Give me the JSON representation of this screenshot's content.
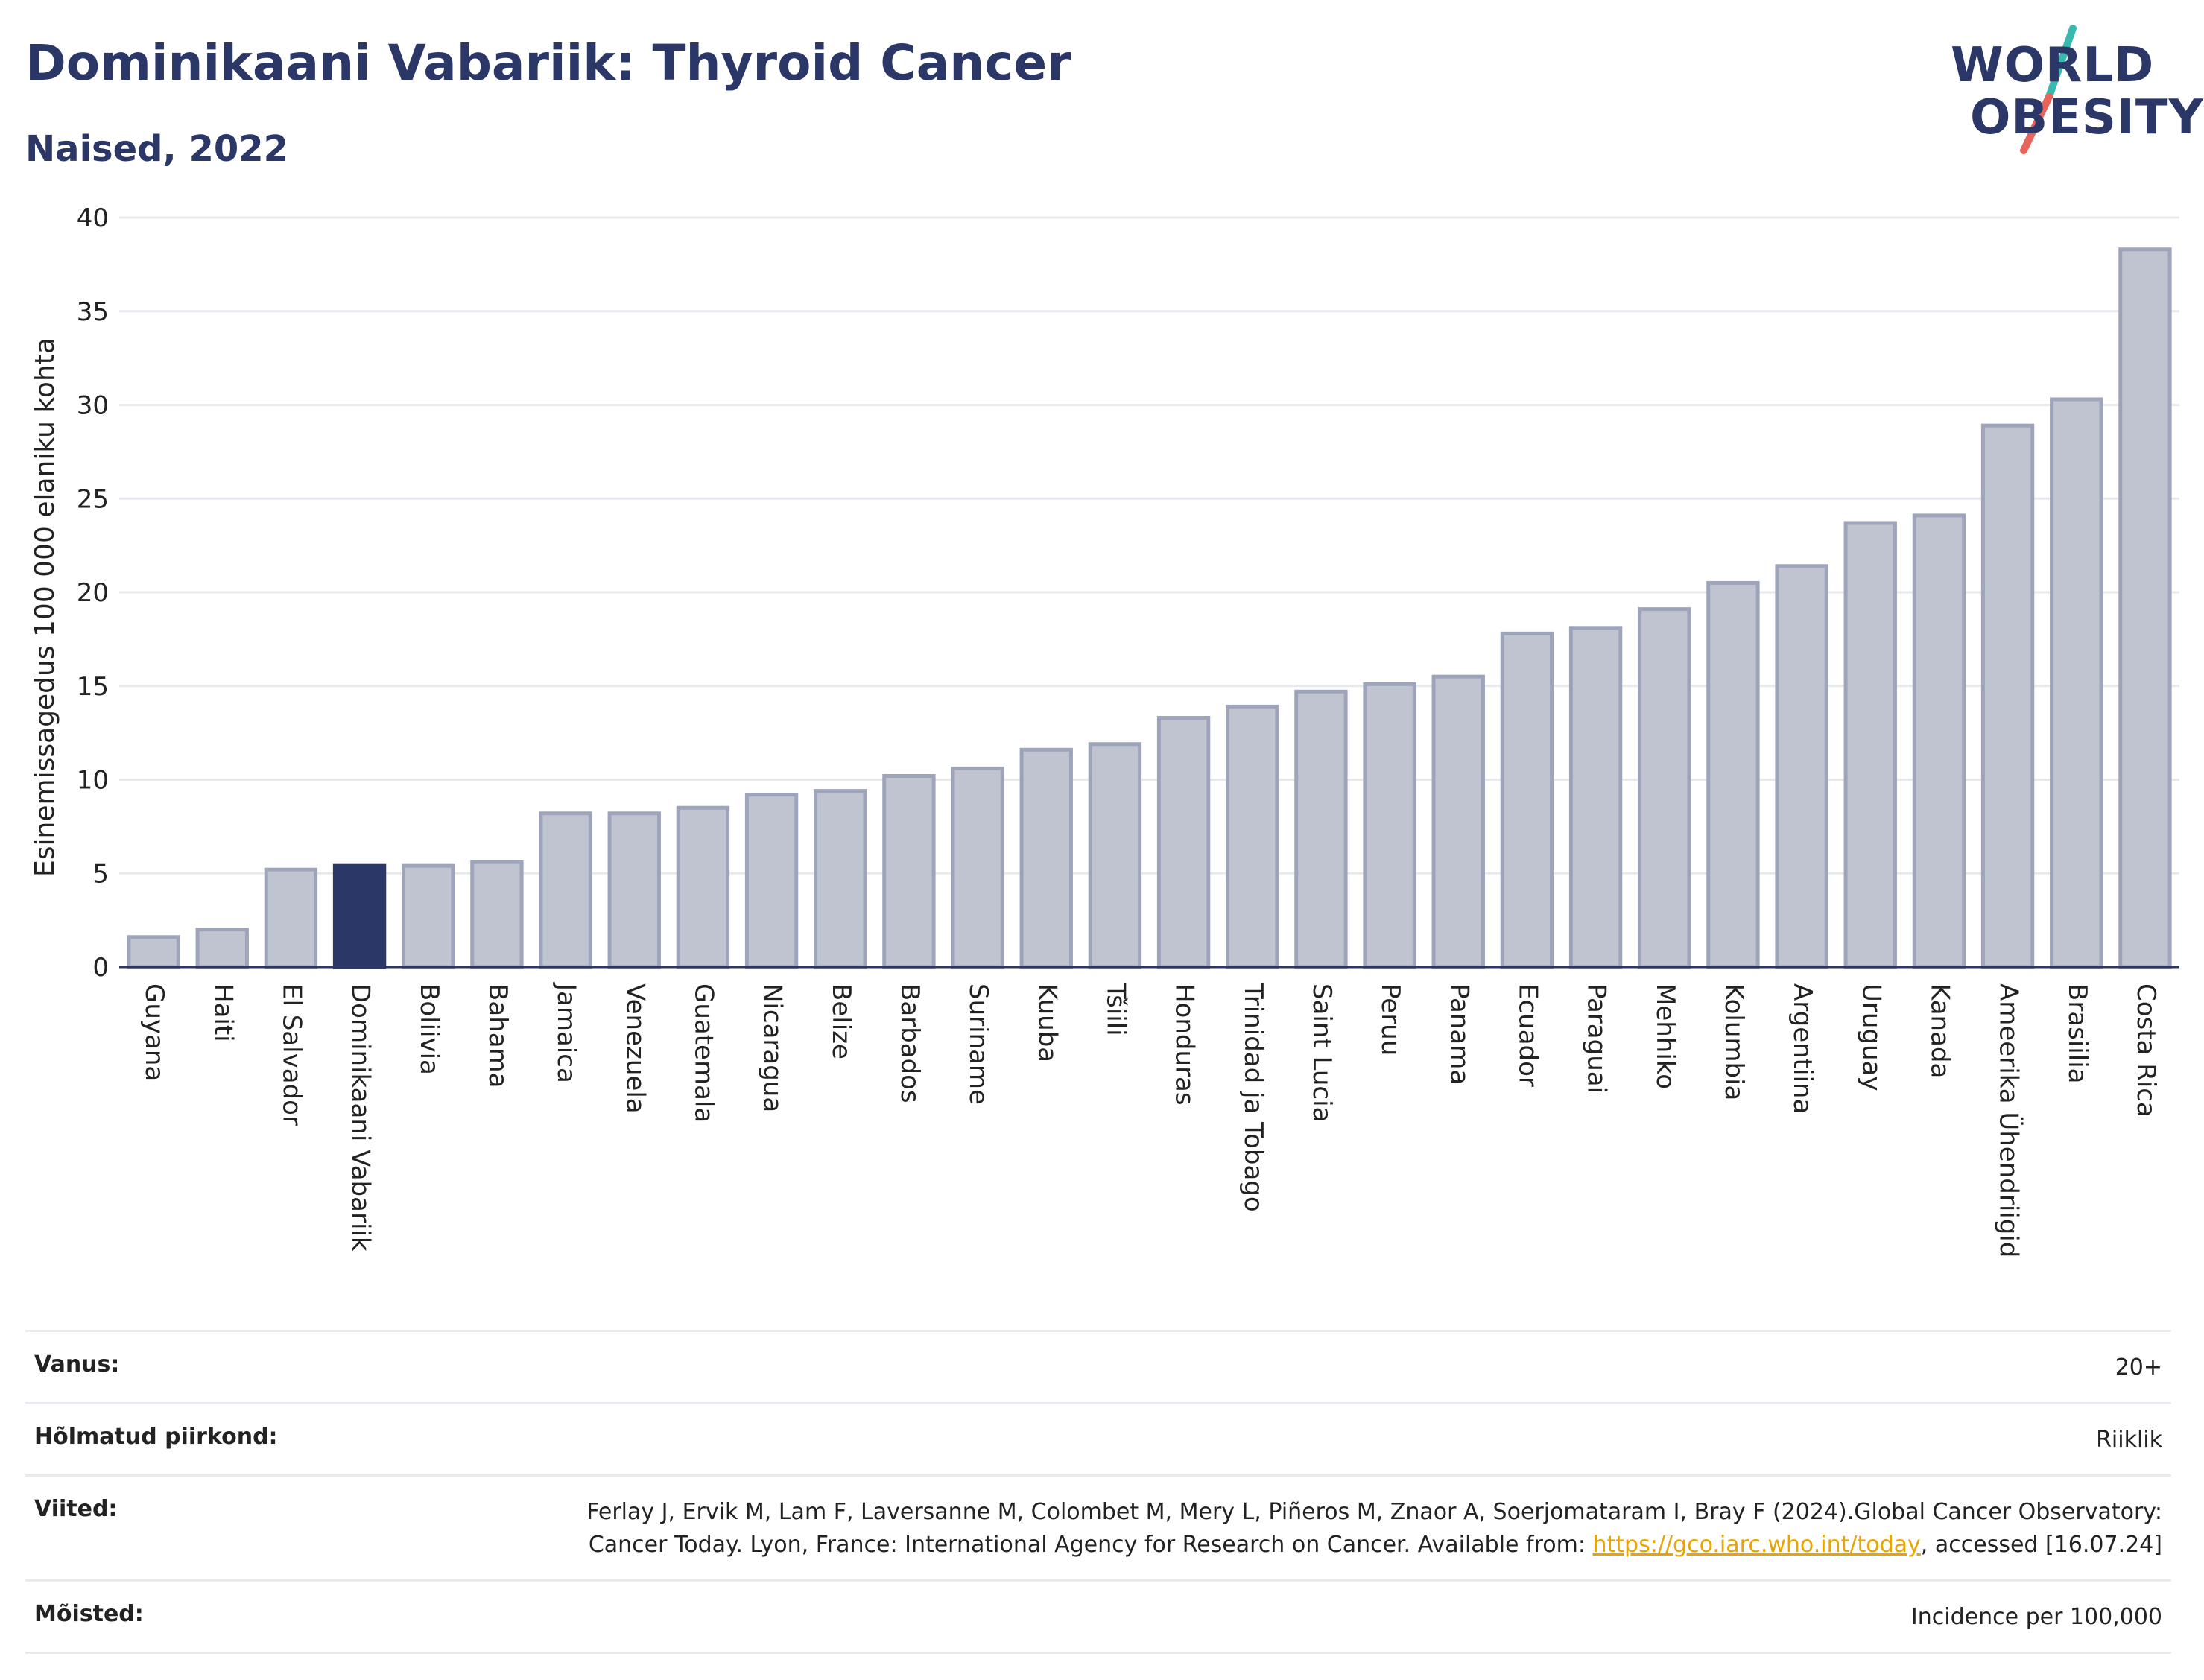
{
  "title": "Dominikaani Vabariik: Thyroid Cancer",
  "subtitle": "Naised, 2022",
  "logo": {
    "line1": "WORLD",
    "line2": "OBESITY",
    "slash_colors": [
      "#39b8b0",
      "#e8635a"
    ]
  },
  "colors": {
    "bar": "#c0c4d1",
    "bar_border": "#9ea4ba",
    "highlight": "#2b3766",
    "grid": "#e8e9ee",
    "axis": "#2b3766",
    "link": "#e8a400"
  },
  "chart_data": {
    "type": "bar",
    "ylabel": "Esinemissagedus 100 000 elaniku kohta",
    "ylim": [
      0,
      40
    ],
    "yticks": [
      0,
      5,
      10,
      15,
      20,
      25,
      30,
      35,
      40
    ],
    "highlight": "Dominikaani Vabariik",
    "categories": [
      "Guyana",
      "Haiti",
      "El Salvador",
      "Dominikaani Vabariik",
      "Boliivia",
      "Bahama",
      "Jamaica",
      "Venezuela",
      "Guatemala",
      "Nicaragua",
      "Belize",
      "Barbados",
      "Suriname",
      "Kuuba",
      "Tšiili",
      "Honduras",
      "Trinidad ja Tobago",
      "Saint Lucia",
      "Peruu",
      "Panama",
      "Ecuador",
      "Paraguai",
      "Mehhiko",
      "Kolumbia",
      "Argentiina",
      "Uruguay",
      "Kanada",
      "Ameerika Ühendriigid",
      "Brasiilia",
      "Costa Rica"
    ],
    "values": [
      1.6,
      2.0,
      5.2,
      5.4,
      5.4,
      5.6,
      8.2,
      8.2,
      8.5,
      9.2,
      9.4,
      10.2,
      10.6,
      11.6,
      11.9,
      13.3,
      13.9,
      14.7,
      15.1,
      15.5,
      17.8,
      18.1,
      19.1,
      20.5,
      21.4,
      23.7,
      24.1,
      28.9,
      30.3,
      38.3
    ]
  },
  "info": {
    "age_label": "Vanus:",
    "age_value": "20+",
    "area_label": "Hõlmatud piirkond:",
    "area_value": "Riiklik",
    "refs_label": "Viited:",
    "refs_text_1": "Ferlay J, Ervik M, Lam F, Laversanne M, Colombet M, Mery L, Piñeros M, Znaor A, Soerjomataram I, Bray F (2024).Global Cancer Observatory: Cancer Today. Lyon, France: International Agency for Research on Cancer. Available from: ",
    "refs_link": "https://gco.iarc.who.int/today",
    "refs_text_2": ", accessed [16.07.24]",
    "defs_label": "Mõisted:",
    "defs_value": "Incidence per 100,000"
  }
}
